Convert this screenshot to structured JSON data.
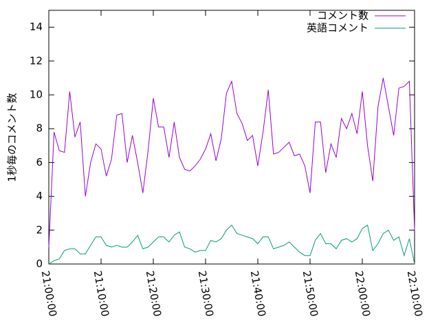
{
  "chart_data": {
    "type": "line",
    "ylabel": "1秒毎のコメント数",
    "x": [
      "21:00:00",
      "21:01:00",
      "21:02:00",
      "21:03:00",
      "21:04:00",
      "21:05:00",
      "21:06:00",
      "21:07:00",
      "21:08:00",
      "21:09:00",
      "21:10:00",
      "21:11:00",
      "21:12:00",
      "21:13:00",
      "21:14:00",
      "21:15:00",
      "21:16:00",
      "21:17:00",
      "21:18:00",
      "21:19:00",
      "21:20:00",
      "21:21:00",
      "21:22:00",
      "21:23:00",
      "21:24:00",
      "21:25:00",
      "21:26:00",
      "21:27:00",
      "21:28:00",
      "21:29:00",
      "21:30:00",
      "21:31:00",
      "21:32:00",
      "21:33:00",
      "21:34:00",
      "21:35:00",
      "21:36:00",
      "21:37:00",
      "21:38:00",
      "21:39:00",
      "21:40:00",
      "21:41:00",
      "21:42:00",
      "21:43:00",
      "21:44:00",
      "21:45:00",
      "21:46:00",
      "21:47:00",
      "21:48:00",
      "21:49:00",
      "21:50:00",
      "21:51:00",
      "21:52:00",
      "21:53:00",
      "21:54:00",
      "21:55:00",
      "21:56:00",
      "21:57:00",
      "21:58:00",
      "21:59:00",
      "22:00:00",
      "22:01:00",
      "22:02:00",
      "22:03:00",
      "22:04:00",
      "22:05:00",
      "22:06:00",
      "22:07:00",
      "22:08:00",
      "22:09:00",
      "22:10:00"
    ],
    "series": [
      {
        "name": "コメント数",
        "color": "#9400d3",
        "values": [
          1.0,
          7.8,
          6.7,
          6.6,
          10.2,
          7.5,
          8.4,
          4.0,
          6.0,
          7.1,
          6.8,
          5.2,
          6.2,
          8.8,
          8.9,
          6.0,
          7.6,
          6.0,
          4.2,
          6.7,
          9.8,
          8.1,
          8.1,
          6.3,
          8.4,
          6.3,
          5.6,
          5.5,
          5.8,
          6.2,
          6.8,
          7.7,
          6.1,
          7.4,
          10.1,
          10.8,
          8.9,
          8.3,
          7.3,
          7.6,
          5.8,
          7.8,
          10.3,
          6.5,
          6.6,
          6.9,
          7.2,
          6.4,
          6.5,
          5.8,
          4.2,
          8.4,
          8.4,
          5.4,
          7.1,
          6.3,
          8.6,
          8.0,
          8.9,
          7.7,
          10.2,
          7.0,
          4.9,
          9.3,
          11.0,
          9.3,
          7.6,
          10.4,
          10.5,
          10.8,
          2.0
        ]
      },
      {
        "name": "英語コメント",
        "color": "#009e73",
        "values": [
          0.0,
          0.2,
          0.3,
          0.8,
          0.9,
          0.9,
          0.6,
          0.6,
          1.1,
          1.6,
          1.6,
          1.1,
          1.0,
          1.1,
          1.0,
          1.0,
          1.3,
          1.7,
          0.9,
          1.0,
          1.3,
          1.6,
          1.6,
          1.3,
          1.7,
          1.9,
          1.0,
          0.9,
          0.7,
          0.8,
          0.8,
          1.4,
          1.3,
          1.5,
          2.0,
          2.3,
          1.8,
          1.7,
          1.6,
          1.5,
          1.2,
          1.6,
          1.6,
          0.9,
          1.0,
          1.1,
          1.3,
          1.0,
          0.7,
          0.5,
          0.5,
          1.4,
          1.8,
          1.2,
          1.2,
          0.9,
          1.4,
          1.5,
          1.3,
          1.5,
          2.1,
          2.3,
          0.8,
          1.2,
          1.8,
          2.0,
          1.4,
          1.6,
          0.5,
          1.5,
          0.0
        ]
      }
    ],
    "xlim": [
      "21:00:00",
      "22:10:00"
    ],
    "xticks": [
      "21:00:00",
      "21:10:00",
      "21:20:00",
      "21:30:00",
      "21:40:00",
      "21:50:00",
      "22:00:00",
      "22:10:00"
    ],
    "ylim": [
      0,
      15
    ],
    "yticks": [
      0,
      2,
      4,
      6,
      8,
      10,
      12,
      14
    ],
    "legend": "top-right"
  }
}
